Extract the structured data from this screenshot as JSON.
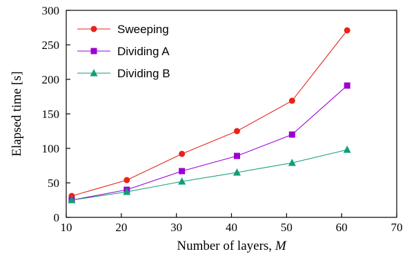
{
  "chart_data": {
    "type": "line",
    "title": "",
    "xlabel": "Number of layers, ",
    "xlabel_var": "M",
    "ylabel": "Elapsed time [s]",
    "xlim": [
      10,
      70
    ],
    "ylim": [
      0,
      300
    ],
    "xticks": [
      10,
      20,
      30,
      40,
      50,
      60,
      70
    ],
    "yticks": [
      0,
      50,
      100,
      150,
      200,
      250,
      300
    ],
    "x": [
      11,
      21,
      31,
      41,
      51,
      61
    ],
    "legend_position": "top-left",
    "grid": false,
    "series": [
      {
        "name": "Sweeping",
        "values": [
          31,
          54,
          92,
          125,
          169,
          271
        ],
        "color": "#e8231c",
        "marker": "circle"
      },
      {
        "name": "Dividing A",
        "values": [
          25,
          40,
          67,
          89,
          120,
          191
        ],
        "color": "#9b00d3",
        "marker": "square"
      },
      {
        "name": "Dividing B",
        "values": [
          25,
          37,
          52,
          65,
          79,
          98
        ],
        "color": "#0e9e78",
        "marker": "triangle"
      }
    ]
  }
}
